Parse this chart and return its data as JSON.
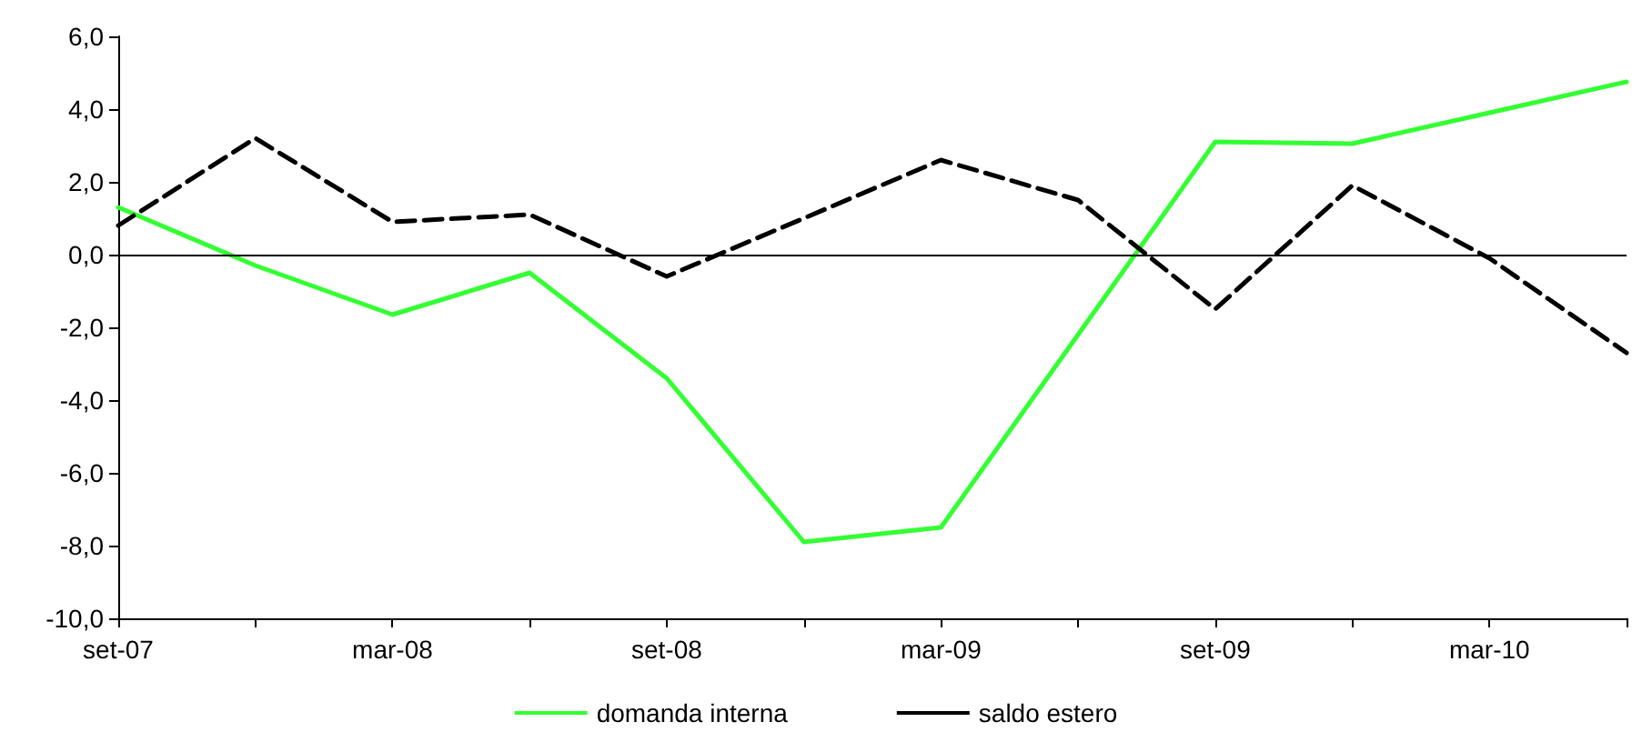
{
  "chart_data": {
    "type": "line",
    "categories": [
      "set-07",
      null,
      "mar-08",
      null,
      "set-08",
      null,
      "mar-09",
      null,
      "set-09",
      null,
      "mar-10",
      null
    ],
    "series": [
      {
        "name": "domanda interna",
        "color": "#33ff33",
        "line_style": "solid",
        "values": [
          1.3,
          -0.3,
          -1.65,
          -0.5,
          -3.4,
          -7.9,
          -7.5,
          -2.2,
          3.1,
          3.05,
          3.9,
          4.75
        ]
      },
      {
        "name": "saldo estero",
        "color": "#000000",
        "line_style": "dashed",
        "values": [
          0.8,
          3.2,
          0.9,
          1.1,
          -0.6,
          1.0,
          2.6,
          1.5,
          -1.5,
          1.9,
          -0.1,
          -2.7
        ]
      }
    ],
    "ylim": [
      -10,
      6
    ],
    "yticks": [
      {
        "value": -10,
        "label": "-10,0"
      },
      {
        "value": -8,
        "label": "-8,0"
      },
      {
        "value": -6,
        "label": "-6,0"
      },
      {
        "value": -4,
        "label": "-4,0"
      },
      {
        "value": -2,
        "label": "-2,0"
      },
      {
        "value": 0,
        "label": "0,0"
      },
      {
        "value": 2,
        "label": "2,0"
      },
      {
        "value": 4,
        "label": "4,0"
      },
      {
        "value": 6,
        "label": "6,0"
      }
    ],
    "ref_lines": [
      {
        "axis": "y",
        "value": 0,
        "color": "#000000"
      }
    ],
    "grid": false,
    "legend": "bottom",
    "marker": "none"
  }
}
